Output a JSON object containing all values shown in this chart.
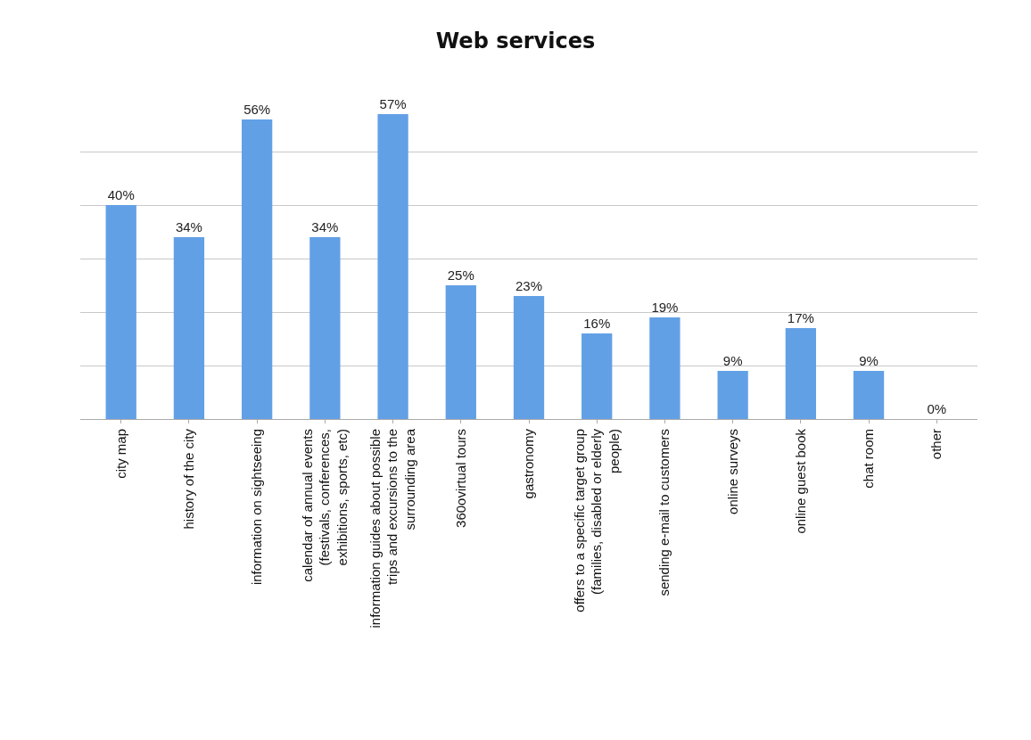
{
  "chart_data": {
    "type": "bar",
    "title": "Web services",
    "categories": [
      "city map",
      "history of the city",
      "information on sightseeing",
      "calendar of annual events (festivals, conferences, exhibitions, sports, etc)",
      "information guides about possible trips and excursions to the surrounding area",
      "360ovirtual tours",
      "gastronomy",
      "offers to a specific target group (families, disabled or elderly people)",
      "sending e-mail to customers",
      "online surveys",
      "online guest book",
      "chat room",
      "other"
    ],
    "values": [
      40,
      34,
      56,
      34,
      57,
      25,
      23,
      16,
      19,
      9,
      17,
      9,
      0
    ],
    "value_labels": [
      "40%",
      "34%",
      "56%",
      "34%",
      "57%",
      "25%",
      "23%",
      "16%",
      "19%",
      "9%",
      "17%",
      "9%",
      "0%"
    ],
    "color": "#62a0e6",
    "tick_labels": "x",
    "grid": "y"
  }
}
